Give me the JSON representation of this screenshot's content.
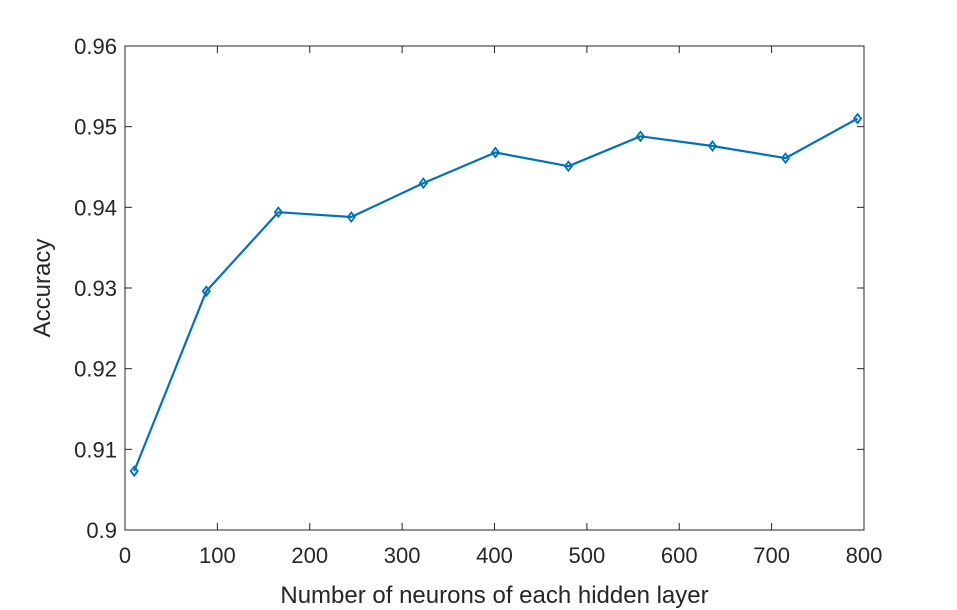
{
  "chart_data": {
    "type": "line",
    "title": "",
    "xlabel": "Number of neurons of each hidden layer",
    "ylabel": "Accuracy",
    "xlim": [
      0,
      800
    ],
    "ylim": [
      0.9,
      0.96
    ],
    "xticks": [
      0,
      100,
      200,
      300,
      400,
      500,
      600,
      700,
      800
    ],
    "xtick_labels": [
      "0",
      "100",
      "200",
      "300",
      "400",
      "500",
      "600",
      "700",
      "800"
    ],
    "yticks": [
      0.9,
      0.91,
      0.92,
      0.93,
      0.94,
      0.95,
      0.96
    ],
    "ytick_labels": [
      "0.9",
      "0.91",
      "0.92",
      "0.93",
      "0.94",
      "0.95",
      "0.96"
    ],
    "grid": false,
    "legend": "none",
    "marker": "diamond",
    "series": [
      {
        "color": "#0072bd",
        "x": [
          10,
          88,
          166,
          245,
          323,
          401,
          480,
          558,
          636,
          715,
          793
        ],
        "y": [
          0.9073,
          0.9296,
          0.9394,
          0.9388,
          0.943,
          0.9468,
          0.9451,
          0.9488,
          0.9476,
          0.9461,
          0.951
        ]
      }
    ]
  }
}
